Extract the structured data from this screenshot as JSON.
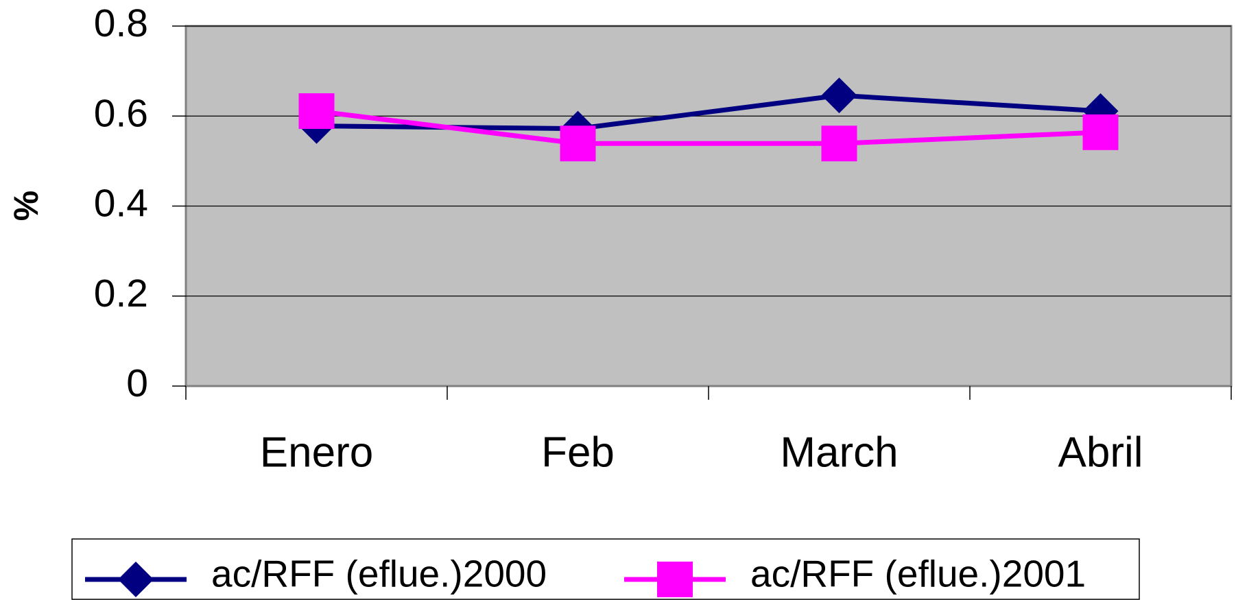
{
  "chart_data": {
    "type": "line",
    "y_label": "%",
    "categories": [
      "Enero",
      "Feb",
      "March",
      "Abril"
    ],
    "series": [
      {
        "name": "ac/RFF (eflue.)2000",
        "color": "#000080",
        "marker": "diamond",
        "values": [
          0.578,
          0.572,
          0.646,
          0.611
        ]
      },
      {
        "name": "ac/RFF (eflue.)2001",
        "color": "#ff00ff",
        "marker": "square",
        "values": [
          0.611,
          0.539,
          0.539,
          0.564
        ]
      }
    ],
    "ylim": [
      0,
      0.8
    ],
    "yticks": [
      0,
      0.2,
      0.4,
      0.6,
      0.8
    ],
    "grid": true,
    "legend": "bottom"
  }
}
